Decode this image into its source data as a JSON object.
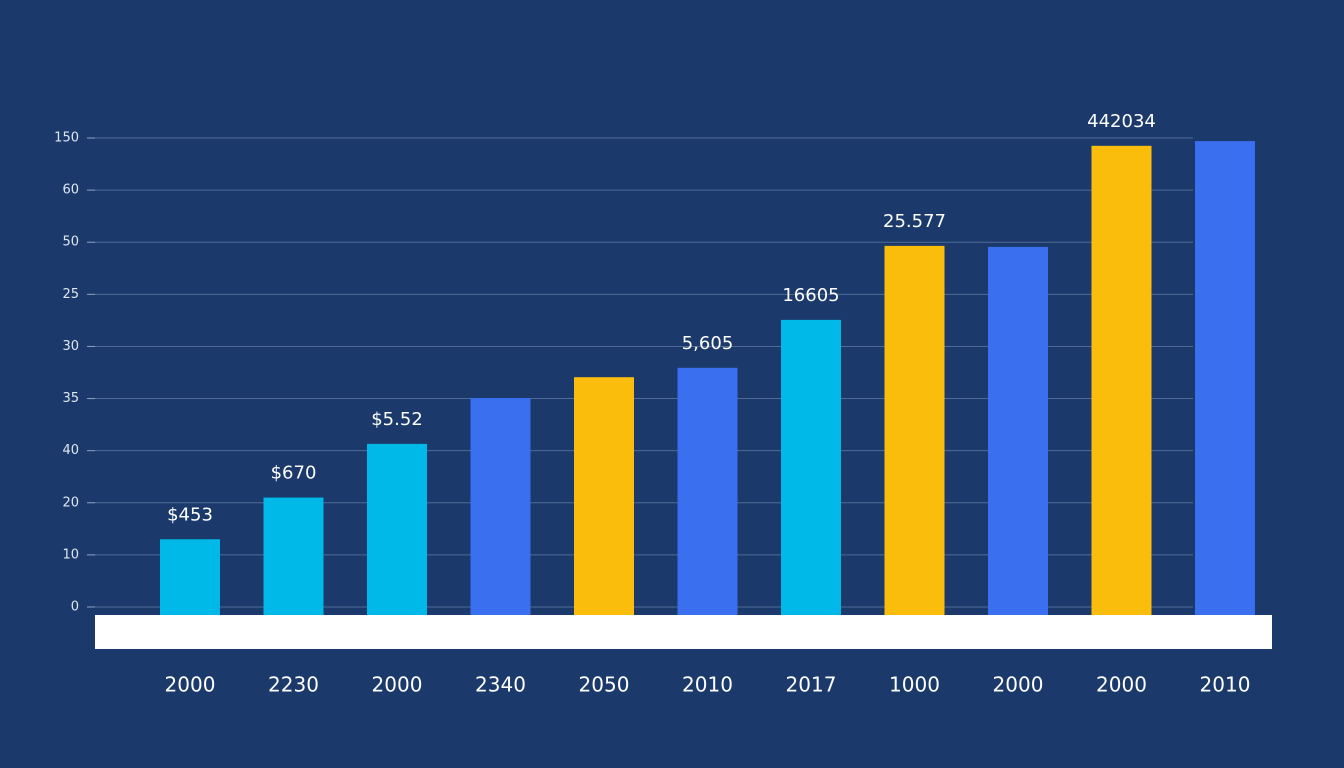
{
  "chart_data": {
    "type": "bar",
    "categories": [
      "2000",
      "2230",
      "2000",
      "2340",
      "2050",
      "2010",
      "2017",
      "1000",
      "2000",
      "2000",
      "2010"
    ],
    "values": [
      13,
      21,
      31.3,
      40.1,
      44.1,
      45.9,
      55.1,
      69.3,
      69.1,
      88.5,
      89.4
    ],
    "annotations": [
      "$453",
      "$670",
      "$5.52",
      null,
      null,
      "5,605",
      "16605",
      "25.577",
      null,
      "442034",
      null
    ],
    "colors": [
      "#00b9e8",
      "#00b9e8",
      "#00b9e8",
      "#3a6ff0",
      "#fbbd0c",
      "#3a6ff0",
      "#00b9e8",
      "#fbbd0c",
      "#3a6ff0",
      "#fbbd0c",
      "#3a6ff0"
    ],
    "ylim": [
      0,
      90
    ],
    "yticks": [
      0,
      10,
      20,
      {
        "value": 30,
        "label": "40"
      },
      {
        "value": 40,
        "label": "35"
      },
      {
        "value": 50,
        "label": "30"
      },
      {
        "value": 60,
        "label": "25"
      },
      {
        "value": 70,
        "label": "50"
      },
      {
        "value": 80,
        "label": "60"
      },
      {
        "value": 90,
        "label": "150"
      }
    ],
    "grid": true
  }
}
